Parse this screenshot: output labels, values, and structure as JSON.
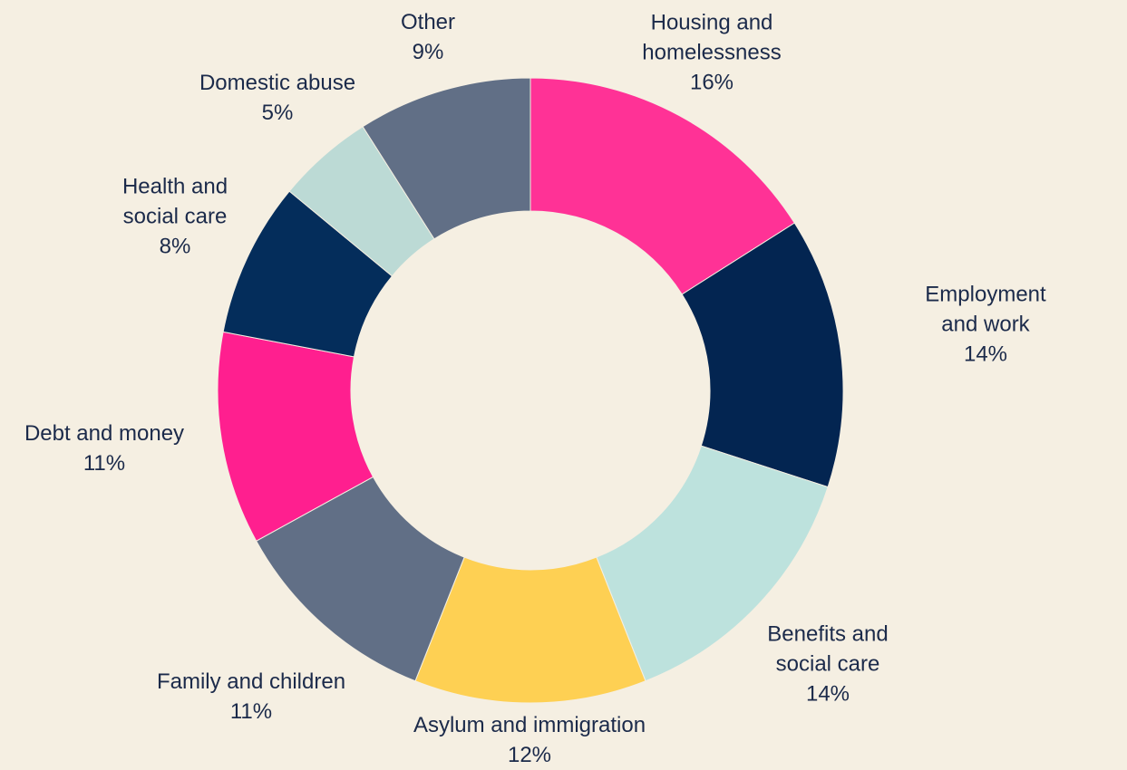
{
  "chart_data": {
    "type": "pie",
    "subtype": "donut",
    "start": "top, clockwise",
    "legend": "none",
    "slices": [
      {
        "label": "Housing and\nhomelessness",
        "value": 16,
        "value_label": "16%",
        "color": "#ff3296"
      },
      {
        "label": "Employment and work",
        "value": 14,
        "value_label": "14%",
        "color": "#032551"
      },
      {
        "label": "Benefits and\nsocial care",
        "value": 14,
        "value_label": "14%",
        "color": "#bde2dd"
      },
      {
        "label": "Asylum and immigration",
        "value": 12,
        "value_label": "12%",
        "color": "#fed053"
      },
      {
        "label": "Family and children",
        "value": 11,
        "value_label": "11%",
        "color": "#616f86"
      },
      {
        "label": "Debt and money",
        "value": 11,
        "value_label": "11%",
        "color": "#ff1f8f"
      },
      {
        "label": "Health and\nsocial care",
        "value": 8,
        "value_label": "8%",
        "color": "#042d5b"
      },
      {
        "label": "Domestic abuse",
        "value": 5,
        "value_label": "5%",
        "color": "#bcdad5"
      },
      {
        "label": "Other",
        "value": 9,
        "value_label": "9%",
        "color": "#616f86"
      }
    ]
  }
}
